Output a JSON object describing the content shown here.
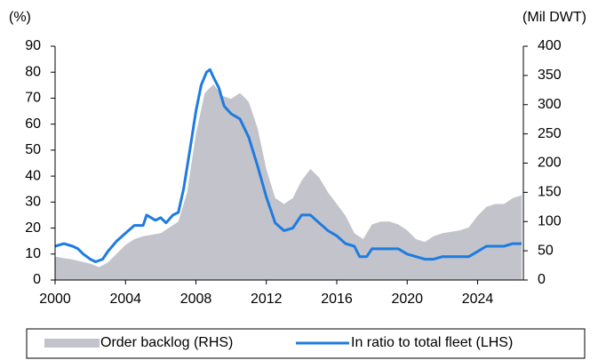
{
  "chart_data": {
    "type": "line",
    "y_label": "(%)",
    "y2_label": "(Mil DWT)",
    "xlim": [
      2000,
      2026.6
    ],
    "xticks": [
      2000,
      2004,
      2008,
      2012,
      2016,
      2020,
      2024
    ],
    "ylim": [
      0,
      90
    ],
    "yticks": [
      0,
      10,
      20,
      30,
      40,
      50,
      60,
      70,
      80,
      90
    ],
    "y2lim": [
      0,
      400
    ],
    "y2ticks": [
      0,
      50,
      100,
      150,
      200,
      250,
      300,
      350,
      400
    ],
    "legend": "bottom",
    "series": [
      {
        "name": "Order backlog (RHS)",
        "type": "area",
        "axis": "y2",
        "color": "#c3c3cb",
        "x": [
          2000,
          2001,
          2002,
          2002.5,
          2003,
          2003.5,
          2004,
          2004.5,
          2005,
          2006,
          2006.5,
          2007,
          2007.5,
          2008,
          2008.5,
          2009,
          2009.5,
          2010,
          2010.5,
          2011,
          2011.5,
          2012,
          2012.5,
          2013,
          2013.5,
          2014,
          2014.5,
          2015,
          2015.5,
          2016,
          2016.5,
          2017,
          2017.5,
          2018,
          2018.5,
          2019,
          2019.5,
          2020,
          2020.5,
          2021,
          2021.5,
          2022,
          2023,
          2023.5,
          2024,
          2024.5,
          2025,
          2025.5,
          2026,
          2026.5
        ],
        "values": [
          40,
          35,
          28,
          22,
          30,
          45,
          60,
          70,
          75,
          80,
          90,
          100,
          150,
          250,
          320,
          335,
          315,
          310,
          320,
          305,
          260,
          190,
          140,
          130,
          140,
          170,
          190,
          175,
          150,
          130,
          110,
          80,
          70,
          95,
          100,
          100,
          95,
          85,
          70,
          65,
          75,
          80,
          85,
          90,
          110,
          125,
          130,
          130,
          140,
          145
        ]
      },
      {
        "name": "In ratio to total fleet (LHS)",
        "type": "line",
        "axis": "y",
        "color": "#1e7be0",
        "x": [
          2000,
          2000.5,
          2001,
          2001.3,
          2001.6,
          2002,
          2002.3,
          2002.7,
          2003,
          2003.5,
          2004,
          2004.5,
          2005,
          2005.2,
          2005.7,
          2006,
          2006.3,
          2006.7,
          2007,
          2007.3,
          2007.7,
          2008,
          2008.3,
          2008.6,
          2008.8,
          2009,
          2009.3,
          2009.6,
          2010,
          2010.5,
          2011,
          2011.5,
          2012,
          2012.5,
          2013,
          2013.5,
          2014,
          2014.5,
          2015,
          2015.5,
          2016,
          2016.5,
          2017,
          2017.3,
          2017.7,
          2018,
          2019,
          2019.5,
          2020,
          2020.5,
          2021,
          2021.5,
          2022,
          2023,
          2023.5,
          2024,
          2024.5,
          2025,
          2025.5,
          2026,
          2026.5
        ],
        "values": [
          13,
          14,
          13,
          12,
          10,
          8,
          7,
          8,
          11,
          15,
          18,
          21,
          21,
          25,
          23,
          24,
          22,
          25,
          26,
          35,
          52,
          65,
          75,
          80,
          81,
          78,
          74,
          67,
          64,
          62,
          55,
          44,
          32,
          22,
          19,
          20,
          25,
          25,
          22,
          19,
          17,
          14,
          13,
          9,
          9,
          12,
          12,
          12,
          10,
          9,
          8,
          8,
          9,
          9,
          9,
          11,
          13,
          13,
          13,
          14,
          14
        ]
      }
    ]
  }
}
